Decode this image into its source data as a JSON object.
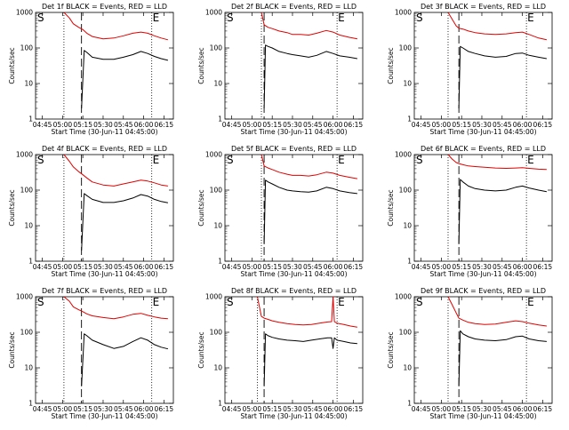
{
  "figure": {
    "background": "#ffffff",
    "colors": {
      "events": "#000000",
      "lld": "#e00000",
      "axes": "#000000"
    }
  },
  "chart_data": [
    {
      "type": "line",
      "detector": "1f",
      "title": "Det 1f BLACK = Events, RED = LLD",
      "xlabel": "Start Time (30-Jun-11 04:45:00)",
      "ylabel": "Counts/sec",
      "xticks": [
        "04:45",
        "05:00",
        "05:15",
        "05:30",
        "05:45",
        "06:00",
        "06:15"
      ],
      "yticks": [
        "1",
        "10",
        "100",
        "1000"
      ],
      "yscale": "log",
      "ylim": [
        1,
        1000
      ],
      "start_marker": "S",
      "end_marker": "E",
      "series": [
        {
          "name": "LLD",
          "color": "#e00000",
          "x": [
            "05:01",
            "05:05",
            "05:08",
            "05:12",
            "05:15",
            "05:18",
            "05:22",
            "05:30",
            "05:38",
            "05:45",
            "05:52",
            "05:58",
            "06:03",
            "06:08",
            "06:13",
            "06:18"
          ],
          "y": [
            1000,
            700,
            480,
            380,
            330,
            260,
            210,
            180,
            190,
            220,
            260,
            280,
            260,
            220,
            190,
            170
          ]
        },
        {
          "name": "Events",
          "color": "#000000",
          "x": [
            "05:14",
            "05:16",
            "05:18",
            "05:22",
            "05:30",
            "05:38",
            "05:45",
            "05:52",
            "05:58",
            "06:03",
            "06:08",
            "06:13",
            "06:18"
          ],
          "y": [
            2,
            85,
            75,
            55,
            48,
            48,
            55,
            65,
            80,
            70,
            58,
            50,
            45
          ]
        }
      ],
      "vertical_lines": {
        "dotted": [
          "05:01",
          "06:06"
        ],
        "dashed": [
          "05:14"
        ]
      }
    },
    {
      "type": "line",
      "detector": "2f",
      "title": "Det 2f BLACK = Events, RED = LLD",
      "xlabel": "Start Time (30-Jun-11 04:45:00)",
      "ylabel": "Counts/sec",
      "xticks": [
        "04:45",
        "05:00",
        "05:15",
        "05:30",
        "05:45",
        "06:00",
        "06:15"
      ],
      "yticks": [
        "1",
        "10",
        "100",
        "1000"
      ],
      "yscale": "log",
      "ylim": [
        1,
        1000
      ],
      "start_marker": "S",
      "end_marker": "E",
      "series": [
        {
          "name": "LLD",
          "color": "#e00000",
          "x": [
            "05:07",
            "05:09",
            "05:12",
            "05:15",
            "05:20",
            "05:26",
            "05:30",
            "05:36",
            "05:42",
            "05:48",
            "05:55",
            "06:00",
            "06:05",
            "06:12",
            "06:18"
          ],
          "y": [
            1000,
            450,
            380,
            350,
            300,
            270,
            240,
            240,
            230,
            260,
            310,
            280,
            230,
            200,
            180
          ]
        },
        {
          "name": "Events",
          "color": "#000000",
          "x": [
            "05:09",
            "05:10",
            "05:12",
            "05:15",
            "05:20",
            "05:26",
            "05:30",
            "05:36",
            "05:42",
            "05:48",
            "05:55",
            "06:00",
            "06:05",
            "06:12",
            "06:18"
          ],
          "y": [
            2,
            120,
            110,
            100,
            80,
            70,
            65,
            60,
            55,
            62,
            80,
            70,
            60,
            55,
            50
          ]
        }
      ],
      "vertical_lines": {
        "dotted": [
          "05:07",
          "06:03"
        ],
        "dashed": [
          "05:09"
        ]
      }
    },
    {
      "type": "line",
      "detector": "3f",
      "title": "Det 3f BLACK = Events, RED = LLD",
      "xlabel": "Start Time (30-Jun-11 04:45:00)",
      "ylabel": "Counts/sec",
      "xticks": [
        "04:45",
        "05:00",
        "05:15",
        "05:30",
        "05:45",
        "06:00",
        "06:15"
      ],
      "yticks": [
        "1",
        "10",
        "100",
        "1000"
      ],
      "yscale": "log",
      "ylim": [
        1,
        1000
      ],
      "start_marker": "S",
      "end_marker": "E",
      "series": [
        {
          "name": "LLD",
          "color": "#e00000",
          "x": [
            "05:05",
            "05:08",
            "05:11",
            "05:13",
            "05:16",
            "05:20",
            "05:25",
            "05:32",
            "05:40",
            "05:48",
            "05:55",
            "06:00",
            "06:05",
            "06:12",
            "06:18"
          ],
          "y": [
            1000,
            650,
            420,
            360,
            340,
            300,
            270,
            250,
            240,
            250,
            270,
            280,
            240,
            190,
            170
          ]
        },
        {
          "name": "Events",
          "color": "#000000",
          "x": [
            "05:13",
            "05:14",
            "05:16",
            "05:20",
            "05:25",
            "05:32",
            "05:40",
            "05:48",
            "05:55",
            "06:00",
            "06:05",
            "06:12",
            "06:18"
          ],
          "y": [
            2,
            110,
            100,
            80,
            70,
            60,
            55,
            58,
            70,
            72,
            62,
            55,
            50
          ]
        }
      ],
      "vertical_lines": {
        "dotted": [
          "05:05",
          "06:03"
        ],
        "dashed": [
          "05:13"
        ]
      }
    },
    {
      "type": "line",
      "detector": "4f",
      "title": "Det 4f BLACK = Events, RED = LLD",
      "xlabel": "Start Time (30-Jun-11 04:45:00)",
      "ylabel": "Counts/sec",
      "xticks": [
        "04:45",
        "05:00",
        "05:15",
        "05:30",
        "05:45",
        "06:00",
        "06:15"
      ],
      "yticks": [
        "1",
        "10",
        "100",
        "1000"
      ],
      "yscale": "log",
      "ylim": [
        1,
        1000
      ],
      "start_marker": "S",
      "end_marker": "E",
      "series": [
        {
          "name": "LLD",
          "color": "#e00000",
          "x": [
            "05:01",
            "05:05",
            "05:08",
            "05:12",
            "05:15",
            "05:18",
            "05:22",
            "05:30",
            "05:38",
            "05:45",
            "05:52",
            "05:58",
            "06:03",
            "06:08",
            "06:13",
            "06:18"
          ],
          "y": [
            1000,
            650,
            450,
            330,
            270,
            220,
            170,
            140,
            130,
            150,
            170,
            190,
            180,
            160,
            140,
            130
          ]
        },
        {
          "name": "Events",
          "color": "#000000",
          "x": [
            "05:14",
            "05:16",
            "05:18",
            "05:22",
            "05:30",
            "05:38",
            "05:45",
            "05:52",
            "05:58",
            "06:03",
            "06:08",
            "06:13",
            "06:18"
          ],
          "y": [
            2,
            80,
            70,
            55,
            45,
            45,
            50,
            60,
            75,
            68,
            55,
            48,
            44
          ]
        }
      ],
      "vertical_lines": {
        "dotted": [
          "05:01",
          "06:06"
        ],
        "dashed": [
          "05:14"
        ]
      }
    },
    {
      "type": "line",
      "detector": "5f",
      "title": "Det 5f BLACK = Events, RED = LLD",
      "xlabel": "Start Time (30-Jun-11 04:45:00)",
      "ylabel": "Counts/sec",
      "xticks": [
        "04:45",
        "05:00",
        "05:15",
        "05:30",
        "05:45",
        "06:00",
        "06:15"
      ],
      "yticks": [
        "1",
        "10",
        "100",
        "1000"
      ],
      "yscale": "log",
      "ylim": [
        1,
        1000
      ],
      "start_marker": "S",
      "end_marker": "E",
      "series": [
        {
          "name": "LLD",
          "color": "#e00000",
          "x": [
            "05:07",
            "05:09",
            "05:12",
            "05:15",
            "05:20",
            "05:26",
            "05:30",
            "05:36",
            "05:42",
            "05:48",
            "05:55",
            "06:00",
            "06:05",
            "06:12",
            "06:18"
          ],
          "y": [
            1000,
            480,
            420,
            380,
            320,
            280,
            260,
            260,
            250,
            270,
            320,
            300,
            260,
            230,
            210
          ]
        },
        {
          "name": "Events",
          "color": "#000000",
          "x": [
            "05:09",
            "05:10",
            "05:12",
            "05:15",
            "05:20",
            "05:26",
            "05:30",
            "05:36",
            "05:42",
            "05:48",
            "05:55",
            "06:00",
            "06:05",
            "06:12",
            "06:18"
          ],
          "y": [
            3,
            190,
            170,
            150,
            120,
            100,
            95,
            90,
            88,
            95,
            120,
            110,
            95,
            85,
            80
          ]
        }
      ],
      "vertical_lines": {
        "dotted": [
          "05:07",
          "06:03"
        ],
        "dashed": [
          "05:09"
        ]
      }
    },
    {
      "type": "line",
      "detector": "6f",
      "title": "Det 6f BLACK = Events, RED = LLD",
      "xlabel": "Start Time (30-Jun-11 04:45:00)",
      "ylabel": "Counts/sec",
      "xticks": [
        "04:45",
        "05:00",
        "05:15",
        "05:30",
        "05:45",
        "06:00",
        "06:15"
      ],
      "yticks": [
        "1",
        "10",
        "100",
        "1000"
      ],
      "yscale": "log",
      "ylim": [
        1,
        1000
      ],
      "start_marker": "S",
      "end_marker": "E",
      "series": [
        {
          "name": "LLD",
          "color": "#e00000",
          "x": [
            "05:05",
            "05:08",
            "05:11",
            "05:13",
            "05:16",
            "05:20",
            "05:25",
            "05:32",
            "05:40",
            "05:48",
            "05:55",
            "06:00",
            "06:05",
            "06:12",
            "06:18"
          ],
          "y": [
            1000,
            750,
            600,
            560,
            520,
            480,
            460,
            440,
            420,
            410,
            420,
            430,
            410,
            390,
            380
          ]
        },
        {
          "name": "Events",
          "color": "#000000",
          "x": [
            "05:13",
            "05:14",
            "05:16",
            "05:20",
            "05:25",
            "05:32",
            "05:40",
            "05:48",
            "05:55",
            "06:00",
            "06:05",
            "06:12",
            "06:18"
          ],
          "y": [
            3,
            200,
            170,
            130,
            110,
            100,
            95,
            100,
            120,
            130,
            115,
            100,
            90
          ]
        }
      ],
      "vertical_lines": {
        "dotted": [
          "05:05",
          "06:03"
        ],
        "dashed": [
          "05:13"
        ]
      }
    },
    {
      "type": "line",
      "detector": "7f",
      "title": "Det 7f BLACK = Events, RED = LLD",
      "xlabel": "Start Time (30-Jun-11 04:45:00)",
      "ylabel": "Counts/sec",
      "xticks": [
        "04:45",
        "05:00",
        "05:15",
        "05:30",
        "05:45",
        "06:00",
        "06:15"
      ],
      "yticks": [
        "1",
        "10",
        "100",
        "1000"
      ],
      "yscale": "log",
      "ylim": [
        1,
        1000
      ],
      "start_marker": "S",
      "end_marker": "E",
      "series": [
        {
          "name": "LLD",
          "color": "#e00000",
          "x": [
            "05:01",
            "05:05",
            "05:08",
            "05:12",
            "05:15",
            "05:18",
            "05:22",
            "05:30",
            "05:38",
            "05:45",
            "05:52",
            "05:58",
            "06:03",
            "06:08",
            "06:13",
            "06:18"
          ],
          "y": [
            1000,
            750,
            520,
            430,
            380,
            330,
            290,
            260,
            240,
            270,
            320,
            340,
            300,
            270,
            250,
            240
          ]
        },
        {
          "name": "Events",
          "color": "#000000",
          "x": [
            "05:14",
            "05:16",
            "05:18",
            "05:22",
            "05:30",
            "05:38",
            "05:45",
            "05:52",
            "05:58",
            "06:03",
            "06:08",
            "06:13",
            "06:18"
          ],
          "y": [
            3,
            90,
            80,
            60,
            45,
            35,
            40,
            55,
            70,
            60,
            45,
            38,
            34
          ]
        }
      ],
      "vertical_lines": {
        "dotted": [
          "05:01",
          "06:06"
        ],
        "dashed": [
          "05:14"
        ]
      }
    },
    {
      "type": "line",
      "detector": "8f",
      "title": "Det 8f BLACK = Events, RED = LLD",
      "xlabel": "Start Time (30-Jun-11 04:45:00)",
      "ylabel": "Counts/sec",
      "xticks": [
        "04:45",
        "05:00",
        "05:15",
        "05:30",
        "05:45",
        "06:00",
        "06:15"
      ],
      "yticks": [
        "1",
        "10",
        "100",
        "1000"
      ],
      "yscale": "log",
      "ylim": [
        1,
        1000
      ],
      "start_marker": "S",
      "end_marker": "E",
      "series": [
        {
          "name": "LLD",
          "color": "#e00000",
          "x": [
            "05:04",
            "05:07",
            "05:09",
            "05:12",
            "05:15",
            "05:20",
            "05:26",
            "05:32",
            "05:38",
            "05:44",
            "05:50",
            "05:56",
            "05:59",
            "06:00",
            "06:01",
            "06:03",
            "06:08",
            "06:13",
            "06:18"
          ],
          "y": [
            1000,
            280,
            250,
            230,
            210,
            190,
            175,
            165,
            160,
            165,
            180,
            195,
            200,
            1000,
            200,
            180,
            165,
            150,
            140
          ]
        },
        {
          "name": "Events",
          "color": "#000000",
          "x": [
            "05:09",
            "05:10",
            "05:12",
            "05:15",
            "05:20",
            "05:26",
            "05:32",
            "05:38",
            "05:44",
            "05:50",
            "05:56",
            "05:59",
            "06:00",
            "06:01",
            "06:03",
            "06:08",
            "06:13",
            "06:18"
          ],
          "y": [
            3,
            90,
            80,
            72,
            65,
            60,
            58,
            55,
            60,
            65,
            70,
            70,
            35,
            70,
            60,
            55,
            50,
            48
          ]
        }
      ],
      "vertical_lines": {
        "dotted": [
          "05:04",
          "06:03"
        ],
        "dashed": [
          "05:09"
        ]
      }
    },
    {
      "type": "line",
      "detector": "9f",
      "title": "Det 9f BLACK = Events, RED = LLD",
      "xlabel": "Start Time (30-Jun-11 04:45:00)",
      "ylabel": "Counts/sec",
      "xticks": [
        "04:45",
        "05:00",
        "05:15",
        "05:30",
        "05:45",
        "06:00",
        "06:15"
      ],
      "yticks": [
        "1",
        "10",
        "100",
        "1000"
      ],
      "yscale": "log",
      "ylim": [
        1,
        1000
      ],
      "start_marker": "S",
      "end_marker": "E",
      "series": [
        {
          "name": "LLD",
          "color": "#e00000",
          "x": [
            "05:05",
            "05:08",
            "05:11",
            "05:13",
            "05:16",
            "05:20",
            "05:25",
            "05:32",
            "05:40",
            "05:48",
            "05:55",
            "06:00",
            "06:05",
            "06:12",
            "06:18"
          ],
          "y": [
            1000,
            600,
            350,
            250,
            220,
            190,
            175,
            165,
            170,
            190,
            210,
            200,
            180,
            160,
            150
          ]
        },
        {
          "name": "Events",
          "color": "#000000",
          "x": [
            "05:13",
            "05:14",
            "05:16",
            "05:20",
            "05:25",
            "05:32",
            "05:40",
            "05:48",
            "05:55",
            "06:00",
            "06:05",
            "06:12",
            "06:18"
          ],
          "y": [
            3,
            110,
            90,
            75,
            65,
            60,
            58,
            62,
            75,
            78,
            65,
            58,
            55
          ]
        }
      ],
      "vertical_lines": {
        "dotted": [
          "05:05",
          "06:03"
        ],
        "dashed": [
          "05:13"
        ]
      }
    }
  ]
}
